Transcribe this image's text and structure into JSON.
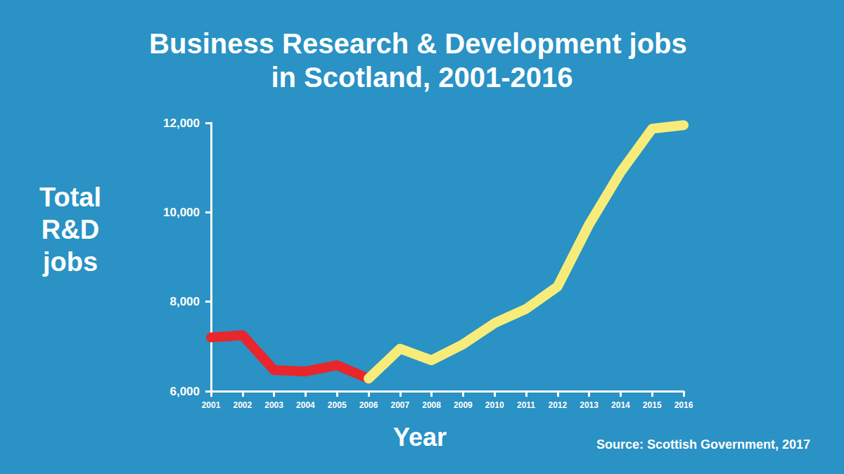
{
  "chart_data": {
    "type": "line",
    "title": "Business Research & Development jobs in Scotland, 2001-2016",
    "x_label": "Year",
    "y_label": "Total R&D jobs",
    "source": "Source: Scottish Government, 2017",
    "categories": [
      "2001",
      "2002",
      "2003",
      "2004",
      "2005",
      "2006",
      "2007",
      "2008",
      "2009",
      "2010",
      "2011",
      "2012",
      "2013",
      "2014",
      "2015",
      "2016"
    ],
    "series": [
      {
        "color": "#e8262b",
        "values": [
          7200,
          7250,
          6470,
          6440,
          6580,
          6280,
          null,
          null,
          null,
          null,
          null,
          null,
          null,
          null,
          null,
          null
        ]
      },
      {
        "color": "#f7ec7a",
        "values": [
          null,
          null,
          null,
          null,
          null,
          6280,
          6950,
          6690,
          7050,
          7520,
          7840,
          8340,
          9730,
          10900,
          11870,
          11950
        ]
      }
    ],
    "ylim": [
      6000,
      12000
    ],
    "yticks": [
      {
        "value": 6000,
        "label": "6,000"
      },
      {
        "value": 8000,
        "label": "8,000"
      },
      {
        "value": 10000,
        "label": "10,000"
      },
      {
        "value": 12000,
        "label": "12,000"
      }
    ],
    "grid": false
  }
}
